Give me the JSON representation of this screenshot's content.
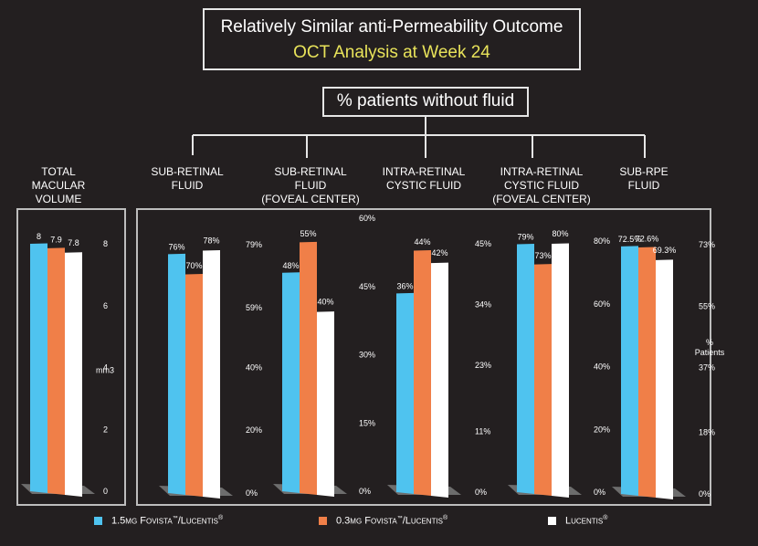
{
  "header": {
    "title": "Relatively Similar anti-Permeability Outcome",
    "subtitle": "OCT Analysis at Week 24",
    "group_label": "% patients without fluid"
  },
  "colors": {
    "series1": "#4fc3ef",
    "series2": "#f07f48",
    "series3": "#ffffff",
    "subtitle": "#e8e35a",
    "background": "#231f20"
  },
  "chart_data": [
    {
      "type": "bar",
      "title": "TOTAL MACULAR VOLUME",
      "title_lines": [
        "TOTAL",
        "MACULAR",
        "VOLUME"
      ],
      "ylabel": "mm3",
      "ylim": [
        0,
        8
      ],
      "yticks": [
        "0",
        "2",
        "4",
        "6",
        "8"
      ],
      "ytick_values": [
        0,
        2,
        4,
        6,
        8
      ],
      "series": [
        {
          "name": "1.5mg Fovista/Lucentis",
          "value": 8,
          "label": "8"
        },
        {
          "name": "0.3mg Fovista/Lucentis",
          "value": 7.9,
          "label": "7.9"
        },
        {
          "name": "Lucentis",
          "value": 7.8,
          "label": "7.8"
        }
      ]
    },
    {
      "type": "bar",
      "title": "SUB-RETINAL FLUID",
      "title_lines": [
        "SUB-RETINAL",
        "FLUID"
      ],
      "ylim": [
        0,
        79
      ],
      "yticks": [
        "0%",
        "20%",
        "40%",
        "59%",
        "79%"
      ],
      "ytick_values": [
        0,
        20,
        40,
        59,
        79
      ],
      "series": [
        {
          "name": "1.5mg Fovista/Lucentis",
          "value": 76,
          "label": "76%"
        },
        {
          "name": "0.3mg Fovista/Lucentis",
          "value": 70,
          "label": "70%"
        },
        {
          "name": "Lucentis",
          "value": 78,
          "label": "78%"
        }
      ]
    },
    {
      "type": "bar",
      "title": "SUB-RETINAL FLUID (FOVEAL CENTER)",
      "title_lines": [
        "SUB-RETINAL",
        "FLUID",
        "(FOVEAL CENTER)"
      ],
      "ylim": [
        0,
        60
      ],
      "yticks": [
        "0%",
        "15%",
        "30%",
        "45%",
        "60%"
      ],
      "ytick_values": [
        0,
        15,
        30,
        45,
        60
      ],
      "series": [
        {
          "name": "1.5mg Fovista/Lucentis",
          "value": 48,
          "label": "48%"
        },
        {
          "name": "0.3mg Fovista/Lucentis",
          "value": 55,
          "label": "55%"
        },
        {
          "name": "Lucentis",
          "value": 40,
          "label": "40%"
        }
      ]
    },
    {
      "type": "bar",
      "title": "INTRA-RETINAL CYSTIC FLUID",
      "title_lines": [
        "INTRA-RETINAL",
        "CYSTIC FLUID"
      ],
      "ylim": [
        0,
        45
      ],
      "yticks": [
        "0%",
        "11%",
        "23%",
        "34%",
        "45%"
      ],
      "ytick_values": [
        0,
        11,
        23,
        34,
        45
      ],
      "series": [
        {
          "name": "1.5mg Fovista/Lucentis",
          "value": 36,
          "label": "36%"
        },
        {
          "name": "0.3mg Fovista/Lucentis",
          "value": 44,
          "label": "44%"
        },
        {
          "name": "Lucentis",
          "value": 42,
          "label": "42%"
        }
      ]
    },
    {
      "type": "bar",
      "title": "INTRA-RETINAL CYSTIC FLUID (FOVEAL CENTER)",
      "title_lines": [
        "INTRA-RETINAL",
        "CYSTIC FLUID",
        "(FOVEAL CENTER)"
      ],
      "ylim": [
        0,
        80
      ],
      "yticks": [
        "0%",
        "20%",
        "40%",
        "60%",
        "80%"
      ],
      "ytick_values": [
        0,
        20,
        40,
        60,
        80
      ],
      "series": [
        {
          "name": "1.5mg Fovista/Lucentis",
          "value": 79,
          "label": "79%"
        },
        {
          "name": "0.3mg Fovista/Lucentis",
          "value": 73,
          "label": "73%"
        },
        {
          "name": "Lucentis",
          "value": 80,
          "label": "80%"
        }
      ]
    },
    {
      "type": "bar",
      "title": "SUB-RPE FLUID",
      "title_lines": [
        "SUB-RPE",
        "FLUID"
      ],
      "ylabel": "% Patients",
      "ylabel_lines": [
        "%",
        "Patients"
      ],
      "ylim": [
        0,
        73
      ],
      "yticks": [
        "0%",
        "18%",
        "37%",
        "55%",
        "73%"
      ],
      "ytick_values": [
        0,
        18,
        37,
        55,
        73
      ],
      "series": [
        {
          "name": "1.5mg Fovista/Lucentis",
          "value": 72.5,
          "label": "72.5%"
        },
        {
          "name": "0.3mg Fovista/Lucentis",
          "value": 72.6,
          "label": "72.6%"
        },
        {
          "name": "Lucentis",
          "value": 69.3,
          "label": "69.3%"
        }
      ]
    }
  ],
  "legend": [
    {
      "dose": "1.5",
      "unit": "mg",
      "text": "Fovista",
      "tm": "™",
      "sep": "/",
      "text2": "Lucentis",
      "reg": "®"
    },
    {
      "dose": "0.3",
      "unit": "mg",
      "text": "Fovista",
      "tm": "™",
      "sep": "/",
      "text2": "Lucentis",
      "reg": "®"
    },
    {
      "dose": "",
      "unit": "",
      "text": "",
      "tm": "",
      "sep": "",
      "text2": "Lucentis",
      "reg": "®"
    }
  ]
}
